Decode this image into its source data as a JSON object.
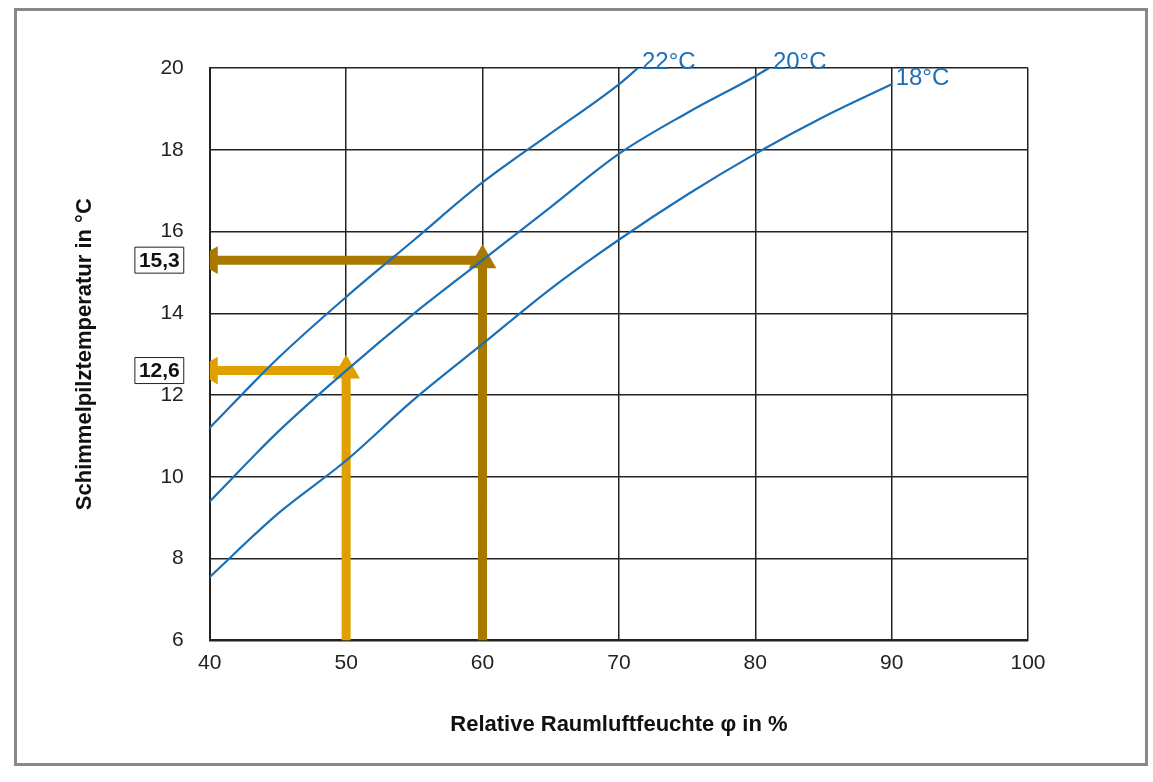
{
  "chart_data": {
    "type": "line",
    "xlabel": "Relative Raumluftfeuchte φ in %",
    "ylabel": "Schimmelpilztemperatur in °C",
    "xlim": [
      40,
      100
    ],
    "xticks": [
      40,
      50,
      60,
      70,
      80,
      90,
      100
    ],
    "ylim": [
      6,
      20
    ],
    "yticks": [
      6,
      8,
      10,
      12,
      14,
      16,
      18,
      20
    ],
    "grid": true,
    "legend": false,
    "marker": "none",
    "line_style": "solid",
    "series": [
      {
        "name": "22°C",
        "color": "#1a6fb8",
        "x": [
          40,
          45,
          50,
          55,
          60,
          65,
          70,
          71.4
        ],
        "values": [
          11.2,
          12.9,
          14.4,
          15.8,
          17.2,
          18.4,
          19.6,
          20
        ]
      },
      {
        "name": "20°C",
        "color": "#1a6fb8",
        "x": [
          40,
          45,
          50,
          55,
          60,
          65,
          70,
          75,
          80,
          81
        ],
        "values": [
          9.4,
          11.1,
          12.6,
          14.0,
          15.3,
          16.6,
          17.9,
          18.9,
          19.8,
          20
        ]
      },
      {
        "name": "18°C",
        "color": "#1a6fb8",
        "x": [
          40,
          45,
          50,
          55,
          60,
          65,
          70,
          75,
          80,
          85,
          90
        ],
        "values": [
          7.55,
          9.1,
          10.4,
          11.9,
          13.25,
          14.6,
          15.8,
          16.9,
          17.9,
          18.8,
          19.6
        ]
      },
      {
        "color": "#e0a000",
        "marker": "triangle",
        "x": [
          50,
          50,
          40
        ],
        "values": [
          6,
          12.6,
          12.6
        ]
      },
      {
        "color": "#a87800",
        "marker": "triangle",
        "x": [
          60,
          60,
          40
        ],
        "values": [
          6,
          15.3,
          15.3
        ]
      }
    ],
    "annotations": [
      {
        "text": "15,3",
        "x": 40,
        "y": 15.3
      },
      {
        "text": "12,6",
        "x": 40,
        "y": 12.6
      }
    ]
  }
}
